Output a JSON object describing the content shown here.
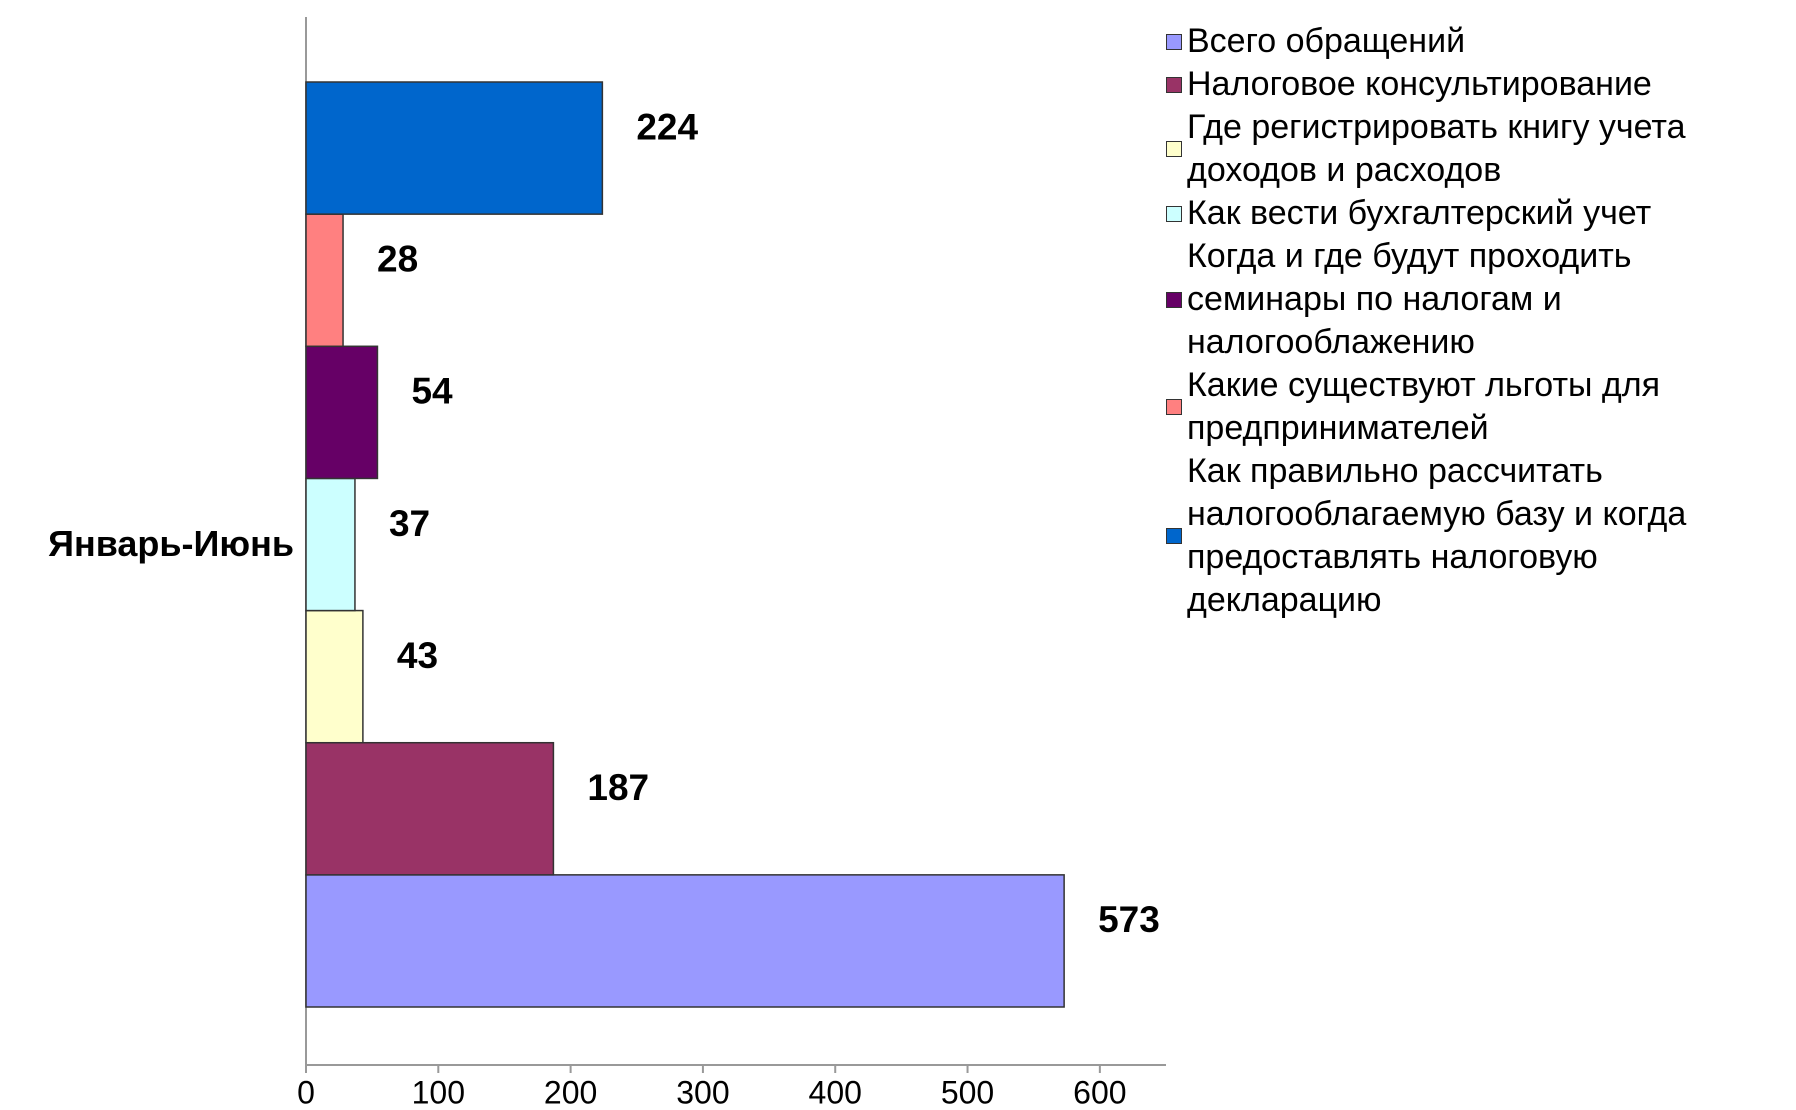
{
  "chart_data": {
    "type": "bar",
    "orientation": "horizontal",
    "categories": [
      "Январь-Июнь"
    ],
    "series": [
      {
        "name": "Всего обращений",
        "color": "#9999ff",
        "values": [
          573
        ]
      },
      {
        "name": "Налоговое консультирование",
        "color": "#993366",
        "values": [
          187
        ]
      },
      {
        "name": "Где регистрировать книгу учета доходов и расходов",
        "color": "#ffffcc",
        "values": [
          43
        ]
      },
      {
        "name": "Как вести бухгалтерский учет",
        "color": "#ccffff",
        "values": [
          37
        ]
      },
      {
        "name": "Когда и где будут проходить семинары по налогам и налогооблажению",
        "color": "#660066",
        "values": [
          54
        ]
      },
      {
        "name": "Какие существуют льготы для предпринимателей",
        "color": "#ff8080",
        "values": [
          28
        ]
      },
      {
        "name": "Как правильно рассчитать налогооблагаемую базу и когда предоставлять налоговую декларацию",
        "color": "#0066cc",
        "values": [
          224
        ]
      }
    ],
    "xlim": [
      0,
      650
    ],
    "xticks": [
      0,
      100,
      200,
      300,
      400,
      500,
      600
    ],
    "legend": "right"
  }
}
